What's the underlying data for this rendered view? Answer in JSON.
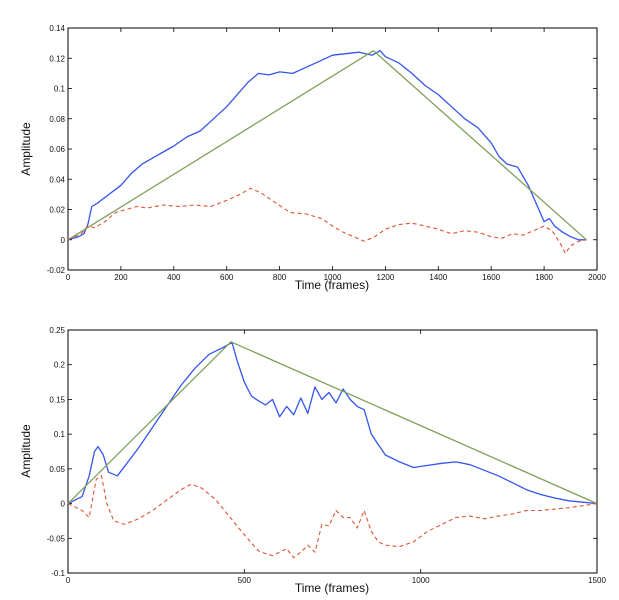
{
  "colors": {
    "measured": "#3355ee",
    "model": "#7fa05a",
    "residual": "#dd5533",
    "axes": "#000000"
  },
  "chart_data": [
    {
      "type": "line",
      "title": "",
      "xlabel": "Time (frames)",
      "ylabel": "Amplitude",
      "xlim": [
        0,
        2000
      ],
      "ylim": [
        -0.02,
        0.14
      ],
      "xticks": [
        0,
        200,
        400,
        600,
        800,
        1000,
        1200,
        1400,
        1600,
        1800,
        2000
      ],
      "xtick_labels": [
        "0",
        "200",
        "400",
        "600",
        "800",
        "1000",
        "1200",
        "1400",
        "1600",
        "1800",
        "2000"
      ],
      "yticks": [
        -0.02,
        0,
        0.02,
        0.04,
        0.06,
        0.08,
        0.1,
        0.12,
        0.14
      ],
      "ytick_labels": [
        "-0.02",
        "0",
        "0.02",
        "0.04",
        "0.06",
        "0.08",
        "0.1",
        "0.12",
        "0.14"
      ],
      "grid": false,
      "series": [
        {
          "style": "solid",
          "color": "#3355ee",
          "x": [
            0,
            40,
            60,
            75,
            90,
            110,
            140,
            170,
            200,
            240,
            280,
            320,
            360,
            400,
            450,
            500,
            550,
            600,
            640,
            680,
            720,
            760,
            800,
            850,
            900,
            950,
            1000,
            1050,
            1100,
            1150,
            1180,
            1200,
            1250,
            1300,
            1350,
            1400,
            1450,
            1500,
            1550,
            1600,
            1630,
            1660,
            1700,
            1740,
            1780,
            1800,
            1820,
            1840,
            1870,
            1900,
            1930,
            1960
          ],
          "y": [
            0,
            0.002,
            0.004,
            0.01,
            0.022,
            0.024,
            0.028,
            0.032,
            0.036,
            0.044,
            0.05,
            0.054,
            0.058,
            0.062,
            0.068,
            0.072,
            0.08,
            0.088,
            0.096,
            0.104,
            0.11,
            0.109,
            0.111,
            0.11,
            0.114,
            0.118,
            0.122,
            0.123,
            0.124,
            0.122,
            0.125,
            0.121,
            0.117,
            0.11,
            0.102,
            0.096,
            0.088,
            0.08,
            0.074,
            0.064,
            0.055,
            0.05,
            0.048,
            0.036,
            0.02,
            0.012,
            0.014,
            0.009,
            0.005,
            0.002,
            0.0,
            0.0
          ]
        },
        {
          "style": "solid",
          "color": "#7fa05a",
          "x": [
            0,
            1155,
            1960
          ],
          "y": [
            0,
            0.125,
            0
          ]
        },
        {
          "style": "dashed",
          "color": "#dd5533",
          "x": [
            0,
            50,
            75,
            100,
            140,
            180,
            220,
            260,
            300,
            360,
            420,
            480,
            540,
            600,
            650,
            690,
            730,
            780,
            840,
            900,
            960,
            1000,
            1040,
            1080,
            1120,
            1160,
            1200,
            1250,
            1300,
            1350,
            1400,
            1450,
            1500,
            1550,
            1600,
            1640,
            1680,
            1720,
            1760,
            1800,
            1830,
            1860,
            1880,
            1900,
            1930,
            1960
          ],
          "y": [
            0,
            0.004,
            0.009,
            0.008,
            0.012,
            0.018,
            0.02,
            0.022,
            0.021,
            0.023,
            0.022,
            0.023,
            0.022,
            0.026,
            0.03,
            0.034,
            0.031,
            0.025,
            0.018,
            0.017,
            0.014,
            0.009,
            0.005,
            0.002,
            -0.001,
            0.002,
            0.007,
            0.01,
            0.011,
            0.009,
            0.007,
            0.004,
            0.006,
            0.005,
            0.002,
            0.001,
            0.004,
            0.003,
            0.006,
            0.009,
            0.006,
            -0.002,
            -0.009,
            -0.004,
            -0.001,
            0.0
          ]
        }
      ]
    },
    {
      "type": "line",
      "title": "",
      "xlabel": "Time (frames)",
      "ylabel": "Amplitude",
      "xlim": [
        0,
        1500
      ],
      "ylim": [
        -0.1,
        0.25
      ],
      "xticks": [
        0,
        500,
        1000,
        1500
      ],
      "xtick_labels": [
        "0",
        "500",
        "1000",
        "1500"
      ],
      "yticks": [
        -0.1,
        -0.05,
        0,
        0.05,
        0.1,
        0.15,
        0.2,
        0.25
      ],
      "ytick_labels": [
        "-0.1",
        "-0.05",
        "0",
        "0.05",
        "0.1",
        "0.15",
        "0.2",
        "0.25"
      ],
      "grid": false,
      "series": [
        {
          "style": "solid",
          "color": "#3355ee",
          "x": [
            0,
            40,
            60,
            75,
            85,
            100,
            115,
            140,
            170,
            200,
            240,
            280,
            320,
            360,
            400,
            440,
            465,
            480,
            500,
            520,
            540,
            560,
            580,
            600,
            620,
            640,
            660,
            680,
            700,
            720,
            740,
            760,
            780,
            800,
            820,
            840,
            860,
            880,
            900,
            940,
            980,
            1020,
            1060,
            1100,
            1140,
            1180,
            1220,
            1260,
            1300,
            1340,
            1380,
            1420,
            1460,
            1500
          ],
          "y": [
            0,
            0.01,
            0.04,
            0.075,
            0.082,
            0.07,
            0.045,
            0.04,
            0.06,
            0.08,
            0.11,
            0.14,
            0.17,
            0.195,
            0.215,
            0.225,
            0.232,
            0.205,
            0.175,
            0.155,
            0.148,
            0.142,
            0.15,
            0.125,
            0.14,
            0.128,
            0.152,
            0.13,
            0.168,
            0.15,
            0.16,
            0.145,
            0.165,
            0.15,
            0.14,
            0.135,
            0.1,
            0.085,
            0.07,
            0.06,
            0.052,
            0.055,
            0.058,
            0.06,
            0.056,
            0.048,
            0.04,
            0.03,
            0.02,
            0.013,
            0.008,
            0.004,
            0.002,
            0.0
          ]
        },
        {
          "style": "solid",
          "color": "#7fa05a",
          "x": [
            0,
            462,
            1500
          ],
          "y": [
            0,
            0.233,
            0
          ]
        },
        {
          "style": "dashed",
          "color": "#dd5533",
          "x": [
            0,
            40,
            60,
            80,
            95,
            110,
            130,
            160,
            200,
            240,
            280,
            320,
            350,
            380,
            420,
            460,
            500,
            540,
            560,
            580,
            600,
            620,
            640,
            660,
            680,
            700,
            720,
            740,
            760,
            780,
            800,
            820,
            840,
            860,
            880,
            900,
            940,
            980,
            1020,
            1060,
            1100,
            1140,
            1180,
            1220,
            1260,
            1300,
            1340,
            1380,
            1420,
            1460,
            1500
          ],
          "y": [
            0,
            -0.01,
            -0.02,
            0.035,
            0.04,
            0.0,
            -0.025,
            -0.03,
            -0.022,
            -0.01,
            0.005,
            0.02,
            0.028,
            0.022,
            0.005,
            -0.02,
            -0.045,
            -0.068,
            -0.072,
            -0.075,
            -0.07,
            -0.065,
            -0.078,
            -0.07,
            -0.06,
            -0.07,
            -0.03,
            -0.032,
            -0.01,
            -0.02,
            -0.02,
            -0.035,
            -0.01,
            -0.04,
            -0.055,
            -0.06,
            -0.062,
            -0.055,
            -0.04,
            -0.03,
            -0.02,
            -0.018,
            -0.022,
            -0.018,
            -0.015,
            -0.01,
            -0.01,
            -0.008,
            -0.006,
            -0.003,
            0.0
          ]
        }
      ]
    }
  ]
}
